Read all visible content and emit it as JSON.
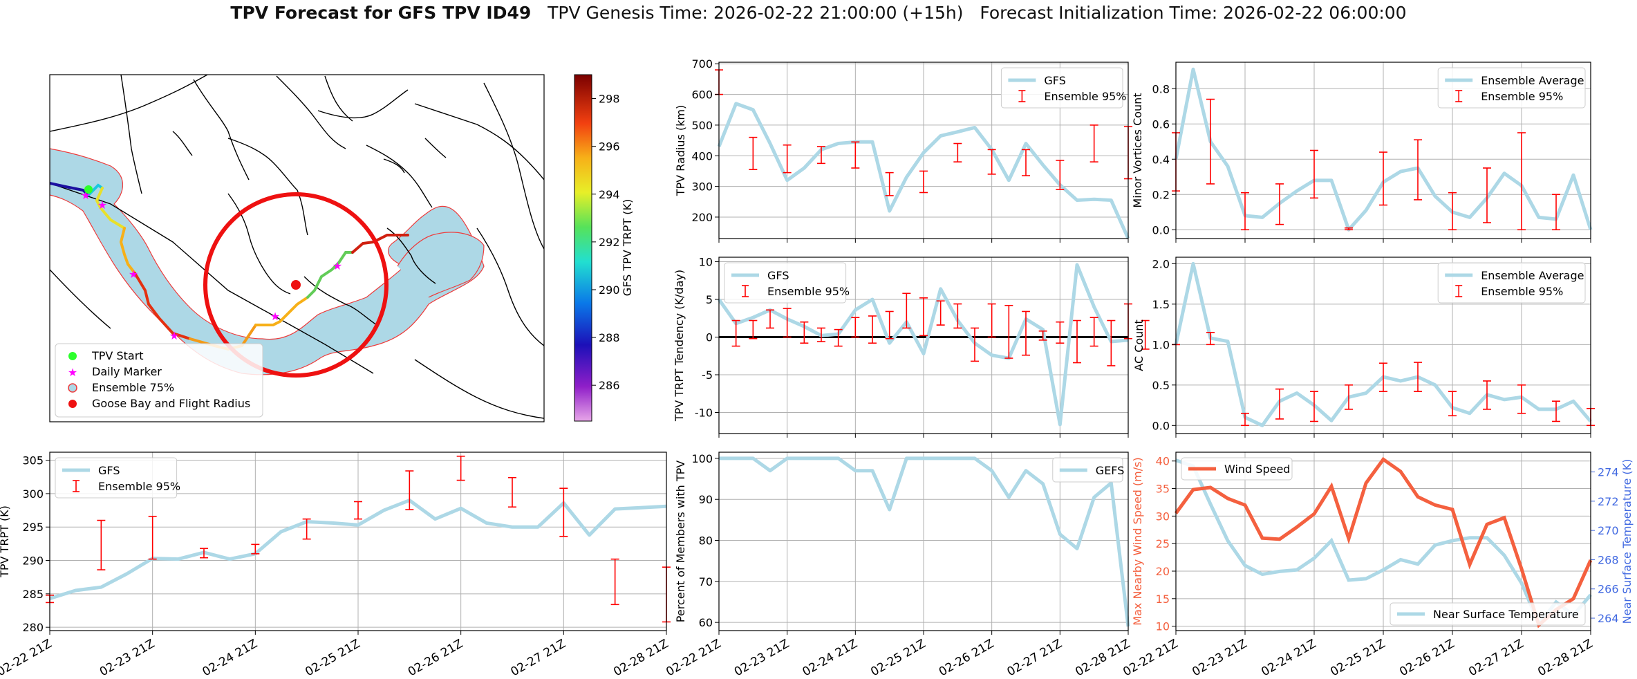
{
  "title": {
    "bold": "TPV Forecast for GFS TPV ID49",
    "genesis": "TPV Genesis Time: 2026-02-22 21:00:00 (+15h)",
    "init": "Forecast Initialization Time: 2026-02-22 06:00:00"
  },
  "time_ticks": [
    "02-22 21Z",
    "02-23 21Z",
    "02-24 21Z",
    "02-25 21Z",
    "02-26 21Z",
    "02-27 21Z",
    "02-28 21Z"
  ],
  "colors": {
    "gfs_line": "#add8e6",
    "ensemble_bar": "#ff0000",
    "wind_line": "#f4603f",
    "temp_axis": "#4169e1",
    "wind_axis": "#f4603f"
  },
  "map": {
    "colorbar_label": "GFS TPV TRPT (K)",
    "colorbar_ticks": [
      "286",
      "288",
      "290",
      "292",
      "294",
      "296",
      "298"
    ],
    "colorbar_range": [
      284.5,
      299
    ],
    "legend": [
      "TPV Start",
      "Daily Marker",
      "Ensemble 75%",
      "Goose Bay and Flight Radius"
    ]
  },
  "chart_data": [
    {
      "id": "radius",
      "type": "line",
      "ylabel": "TPV Radius (km)",
      "ylim": [
        130,
        705
      ],
      "yticks": [
        200,
        300,
        400,
        500,
        600,
        700
      ],
      "legend": [
        "GFS",
        "Ensemble 95%"
      ],
      "legend_pos": "top-right",
      "series": [
        {
          "name": "GFS",
          "values": [
            430,
            570,
            550,
            440,
            320,
            360,
            420,
            440,
            445,
            445,
            220,
            330,
            410,
            465,
            478,
            492,
            420,
            320,
            440,
            370,
            305,
            255,
            258,
            255,
            130
          ]
        }
      ],
      "ensemble95": [
        {
          "i": 0,
          "lo": 600,
          "hi": 680
        },
        {
          "i": 2,
          "lo": 355,
          "hi": 460
        },
        {
          "i": 4,
          "lo": 345,
          "hi": 435
        },
        {
          "i": 6,
          "lo": 375,
          "hi": 430
        },
        {
          "i": 8,
          "lo": 360,
          "hi": 445
        },
        {
          "i": 10,
          "lo": 270,
          "hi": 345
        },
        {
          "i": 12,
          "lo": 280,
          "hi": 350
        },
        {
          "i": 14,
          "lo": 380,
          "hi": 440
        },
        {
          "i": 16,
          "lo": 340,
          "hi": 420
        },
        {
          "i": 18,
          "lo": 335,
          "hi": 420
        },
        {
          "i": 20,
          "lo": 290,
          "hi": 385
        },
        {
          "i": 22,
          "lo": 380,
          "hi": 500
        },
        {
          "i": 24,
          "lo": 325,
          "hi": 495
        }
      ]
    },
    {
      "id": "minor",
      "type": "line",
      "ylabel": "Minor Vortices Count",
      "ylim": [
        -0.05,
        0.95
      ],
      "yticks": [
        0.0,
        0.2,
        0.4,
        0.6,
        0.8
      ],
      "legend": [
        "Ensemble Average",
        "Ensemble 95%"
      ],
      "legend_pos": "top-right",
      "series": [
        {
          "name": "Ensemble Average",
          "values": [
            0.4,
            0.91,
            0.5,
            0.36,
            0.08,
            0.07,
            0.15,
            0.22,
            0.28,
            0.28,
            0.0,
            0.11,
            0.27,
            0.33,
            0.35,
            0.19,
            0.1,
            0.07,
            0.18,
            0.32,
            0.25,
            0.07,
            0.06,
            0.31,
            0.0
          ]
        }
      ],
      "ensemble95": [
        {
          "i": 0,
          "lo": 0.22,
          "hi": 0.55
        },
        {
          "i": 2,
          "lo": 0.26,
          "hi": 0.74
        },
        {
          "i": 4,
          "lo": 0.0,
          "hi": 0.21
        },
        {
          "i": 6,
          "lo": 0.03,
          "hi": 0.26
        },
        {
          "i": 8,
          "lo": 0.18,
          "hi": 0.45
        },
        {
          "i": 10,
          "lo": 0.0,
          "hi": 0.01
        },
        {
          "i": 12,
          "lo": 0.14,
          "hi": 0.44
        },
        {
          "i": 14,
          "lo": 0.17,
          "hi": 0.51
        },
        {
          "i": 16,
          "lo": 0.0,
          "hi": 0.21
        },
        {
          "i": 18,
          "lo": 0.04,
          "hi": 0.35
        },
        {
          "i": 20,
          "lo": 0.0,
          "hi": 0.55
        },
        {
          "i": 22,
          "lo": 0.0,
          "hi": 0.2
        }
      ]
    },
    {
      "id": "tendency",
      "type": "line",
      "ylabel": "TPV TRPT Tendency (K/day)",
      "ylim": [
        -12.8,
        10.6
      ],
      "yticks": [
        -10,
        -5,
        0,
        5,
        10
      ],
      "legend": [
        "GFS",
        "Ensemble 95%"
      ],
      "legend_pos": "top-left",
      "zero_line": true,
      "series": [
        {
          "name": "GFS",
          "values": [
            5,
            1.8,
            2.6,
            3.6,
            2.4,
            1.4,
            0.2,
            0.4,
            3.6,
            5,
            -0.8,
            2,
            -2.2,
            6.4,
            2.2,
            -0.8,
            -2.4,
            -2.8,
            2.4,
            1,
            -11.6,
            9.6,
            4,
            -0.6,
            -0.4
          ]
        }
      ],
      "ensemble95": [
        {
          "i": 1,
          "lo": -1.2,
          "hi": 2.2
        },
        {
          "i": 2,
          "lo": -0.2,
          "hi": 2.2
        },
        {
          "i": 3,
          "lo": 1.2,
          "hi": 3.6
        },
        {
          "i": 4,
          "lo": 0,
          "hi": 3.8
        },
        {
          "i": 5,
          "lo": -0.8,
          "hi": 2
        },
        {
          "i": 6,
          "lo": -0.6,
          "hi": 1.2
        },
        {
          "i": 7,
          "lo": -1.2,
          "hi": 1
        },
        {
          "i": 8,
          "lo": 0,
          "hi": 2.6
        },
        {
          "i": 9,
          "lo": -0.8,
          "hi": 2.8
        },
        {
          "i": 10,
          "lo": -0.2,
          "hi": 3.4
        },
        {
          "i": 11,
          "lo": 1.2,
          "hi": 5.8
        },
        {
          "i": 12,
          "lo": 0.2,
          "hi": 5.2
        },
        {
          "i": 13,
          "lo": 1.6,
          "hi": 4.8
        },
        {
          "i": 14,
          "lo": 1.2,
          "hi": 4.4
        },
        {
          "i": 15,
          "lo": -3.2,
          "hi": 1.2
        },
        {
          "i": 16,
          "lo": 0,
          "hi": 4.4
        },
        {
          "i": 17,
          "lo": -2.8,
          "hi": 4.2
        },
        {
          "i": 18,
          "lo": -2.4,
          "hi": 3.4
        },
        {
          "i": 19,
          "lo": -0.4,
          "hi": 0.8
        },
        {
          "i": 20,
          "lo": -0.8,
          "hi": 2
        },
        {
          "i": 21,
          "lo": -3.4,
          "hi": 2.2
        },
        {
          "i": 22,
          "lo": -1.2,
          "hi": 2.6
        },
        {
          "i": 23,
          "lo": -3.8,
          "hi": 2.2
        },
        {
          "i": 24,
          "lo": -0.2,
          "hi": 4.4
        },
        {
          "i": 25,
          "lo": -1.6,
          "hi": 2.2
        }
      ]
    },
    {
      "id": "ac",
      "type": "line",
      "ylabel": "AC Count",
      "ylim": [
        -0.1,
        2.08
      ],
      "yticks": [
        0.0,
        0.5,
        1.0,
        1.5,
        2.0
      ],
      "legend": [
        "Ensemble Average",
        "Ensemble 95%"
      ],
      "legend_pos": "top-right",
      "series": [
        {
          "name": "Ensemble Average",
          "values": [
            1.0,
            2.0,
            1.08,
            1.04,
            0.1,
            0.0,
            0.3,
            0.4,
            0.25,
            0.06,
            0.35,
            0.4,
            0.6,
            0.55,
            0.6,
            0.5,
            0.22,
            0.15,
            0.38,
            0.32,
            0.35,
            0.2,
            0.2,
            0.3,
            0.05
          ]
        }
      ],
      "ensemble95": [
        {
          "i": 0,
          "lo": 1.0,
          "hi": 1.0
        },
        {
          "i": 2,
          "lo": 1.0,
          "hi": 1.15
        },
        {
          "i": 4,
          "lo": 0.0,
          "hi": 0.15
        },
        {
          "i": 6,
          "lo": 0.08,
          "hi": 0.45
        },
        {
          "i": 8,
          "lo": 0.05,
          "hi": 0.42
        },
        {
          "i": 10,
          "lo": 0.2,
          "hi": 0.5
        },
        {
          "i": 12,
          "lo": 0.42,
          "hi": 0.77
        },
        {
          "i": 14,
          "lo": 0.42,
          "hi": 0.78
        },
        {
          "i": 16,
          "lo": 0.12,
          "hi": 0.42
        },
        {
          "i": 18,
          "lo": 0.2,
          "hi": 0.55
        },
        {
          "i": 20,
          "lo": 0.15,
          "hi": 0.5
        },
        {
          "i": 22,
          "lo": 0.05,
          "hi": 0.3
        },
        {
          "i": 24,
          "lo": 0.0,
          "hi": 0.21
        }
      ]
    },
    {
      "id": "trpt",
      "type": "line",
      "ylabel": "TPV TRPT (K)",
      "ylim": [
        279.5,
        306.2
      ],
      "yticks": [
        280,
        285,
        290,
        295,
        300,
        305
      ],
      "legend": [
        "GFS",
        "Ensemble 95%"
      ],
      "legend_pos": "top-left",
      "series": [
        {
          "name": "GFS",
          "values": [
            284.3,
            285.5,
            286,
            288,
            290.3,
            290.2,
            291.2,
            290.2,
            291,
            294.3,
            295.8,
            295.6,
            295.3,
            297.5,
            299,
            296.2,
            297.8,
            295.6,
            295,
            295,
            298.6,
            293.8,
            297.7,
            297.9,
            298.1
          ]
        }
      ],
      "ensemble95": [
        {
          "i": 0,
          "lo": 283.7,
          "hi": 284.8
        },
        {
          "i": 2,
          "lo": 288.6,
          "hi": 296
        },
        {
          "i": 4,
          "lo": 290.2,
          "hi": 296.6
        },
        {
          "i": 6,
          "lo": 290.4,
          "hi": 291.8
        },
        {
          "i": 8,
          "lo": 291,
          "hi": 292.4
        },
        {
          "i": 10,
          "lo": 293.2,
          "hi": 296.2
        },
        {
          "i": 12,
          "lo": 296.2,
          "hi": 298.8
        },
        {
          "i": 14,
          "lo": 297.6,
          "hi": 303.4
        },
        {
          "i": 16,
          "lo": 302,
          "hi": 305.6
        },
        {
          "i": 18,
          "lo": 298,
          "hi": 302.4
        },
        {
          "i": 20,
          "lo": 293.6,
          "hi": 300.8
        },
        {
          "i": 22,
          "lo": 283.4,
          "hi": 290.2
        },
        {
          "i": 24,
          "lo": 280.8,
          "hi": 289
        }
      ]
    },
    {
      "id": "percent",
      "type": "line",
      "ylabel": "Percent of Members with TPV",
      "ylim": [
        58,
        101.5
      ],
      "yticks": [
        60,
        70,
        80,
        90,
        100
      ],
      "legend": [
        "GEFS"
      ],
      "legend_pos": "top-right",
      "series": [
        {
          "name": "GEFS",
          "values": [
            100,
            100,
            100,
            97,
            100,
            100,
            100,
            100,
            97,
            97,
            87.5,
            100,
            100,
            100,
            100,
            100,
            97,
            90.5,
            97,
            93.8,
            81.5,
            78,
            90.5,
            94,
            59
          ]
        }
      ],
      "ensemble95": []
    },
    {
      "id": "wind",
      "type": "line",
      "ylabel": "Max Nearby Wind Speed (m/s)",
      "ylabel2": "Near Surface Temperature (K)",
      "ylim": [
        9.2,
        41.6
      ],
      "yticks": [
        10,
        15,
        20,
        25,
        30,
        35,
        40
      ],
      "ylim2": [
        263.15,
        275.35
      ],
      "yticks2": [
        264,
        266,
        268,
        270,
        272,
        274
      ],
      "legend": [
        "Wind Speed",
        "Near Surface Temperature"
      ],
      "series": [
        {
          "name": "Wind Speed",
          "values": [
            30.5,
            34.8,
            35.2,
            33.2,
            32,
            26,
            25.8,
            28,
            30.4,
            35.4,
            25.9,
            36,
            40.3,
            38.1,
            33.5,
            32,
            31.2,
            21.2,
            28.5,
            29.7,
            20.4,
            10.2,
            13,
            15,
            22
          ]
        },
        {
          "name": "Near Surface Temperature",
          "values": [
            274.8,
            274.4,
            271.8,
            269.3,
            267.6,
            267,
            267.2,
            267.3,
            268.1,
            269.3,
            266.6,
            266.7,
            267.3,
            268,
            267.7,
            269,
            269.3,
            269.5,
            269.5,
            268.3,
            266.4,
            263.6,
            265.1,
            264.2,
            265.6
          ]
        }
      ]
    }
  ]
}
